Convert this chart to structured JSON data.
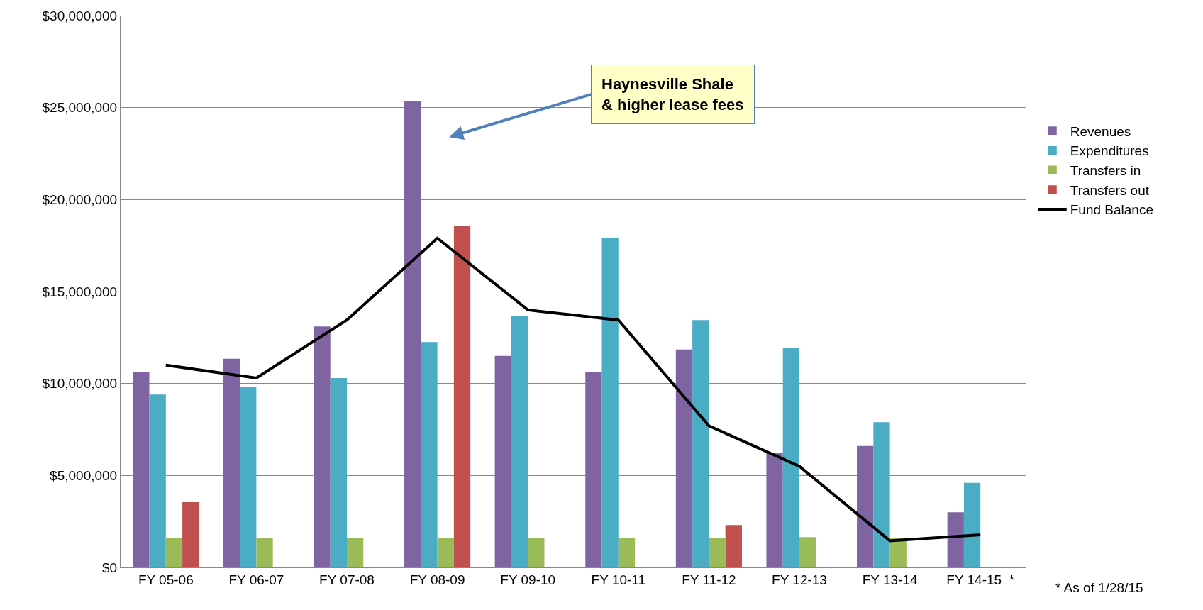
{
  "chart_data": {
    "type": "bar",
    "categories": [
      "FY 05-06",
      "FY 06-07",
      "FY 07-08",
      "FY 08-09",
      "FY 09-10",
      "FY 10-11",
      "FY 11-12",
      "FY 12-13",
      "FY 13-14",
      "FY 14-15  *"
    ],
    "series": [
      {
        "name": "Revenues",
        "color": "#8064a2",
        "values": [
          10600000,
          11350000,
          13100000,
          25350000,
          11500000,
          10600000,
          11850000,
          6250000,
          6600000,
          3000000
        ]
      },
      {
        "name": "Expenditures",
        "color": "#4bacc6",
        "values": [
          9400000,
          9800000,
          10300000,
          12250000,
          13650000,
          17900000,
          13450000,
          11950000,
          7900000,
          4600000
        ]
      },
      {
        "name": "Transfers in",
        "color": "#9bbb59",
        "values": [
          1600000,
          1600000,
          1600000,
          1600000,
          1600000,
          1600000,
          1600000,
          1650000,
          1600000,
          null
        ]
      },
      {
        "name": "Transfers out",
        "color": "#c0504d",
        "values": [
          3550000,
          null,
          null,
          18550000,
          null,
          null,
          2300000,
          null,
          null,
          null
        ]
      },
      {
        "name": "Fund Balance",
        "color": "#000000",
        "type": "line",
        "values": [
          11000000,
          10300000,
          13450000,
          17900000,
          14000000,
          13450000,
          7700000,
          5500000,
          1450000,
          1770000
        ]
      }
    ],
    "ylim": [
      0,
      30000000
    ],
    "yticks": [
      {
        "value": 0,
        "label": "$0"
      },
      {
        "value": 5000000,
        "label": "$5,000,000"
      },
      {
        "value": 10000000,
        "label": "$10,000,000"
      },
      {
        "value": 15000000,
        "label": "$15,000,000"
      },
      {
        "value": 20000000,
        "label": "$20,000,000"
      },
      {
        "value": 25000000,
        "label": "$25,000,000"
      },
      {
        "value": 30000000,
        "label": "$30,000,000"
      }
    ],
    "grid": "y",
    "legend": "right",
    "marker": "none",
    "line_style": "solid",
    "annotations": [
      "Haynesville Shale\n& higher lease fees",
      "* As of 1/28/15"
    ]
  }
}
